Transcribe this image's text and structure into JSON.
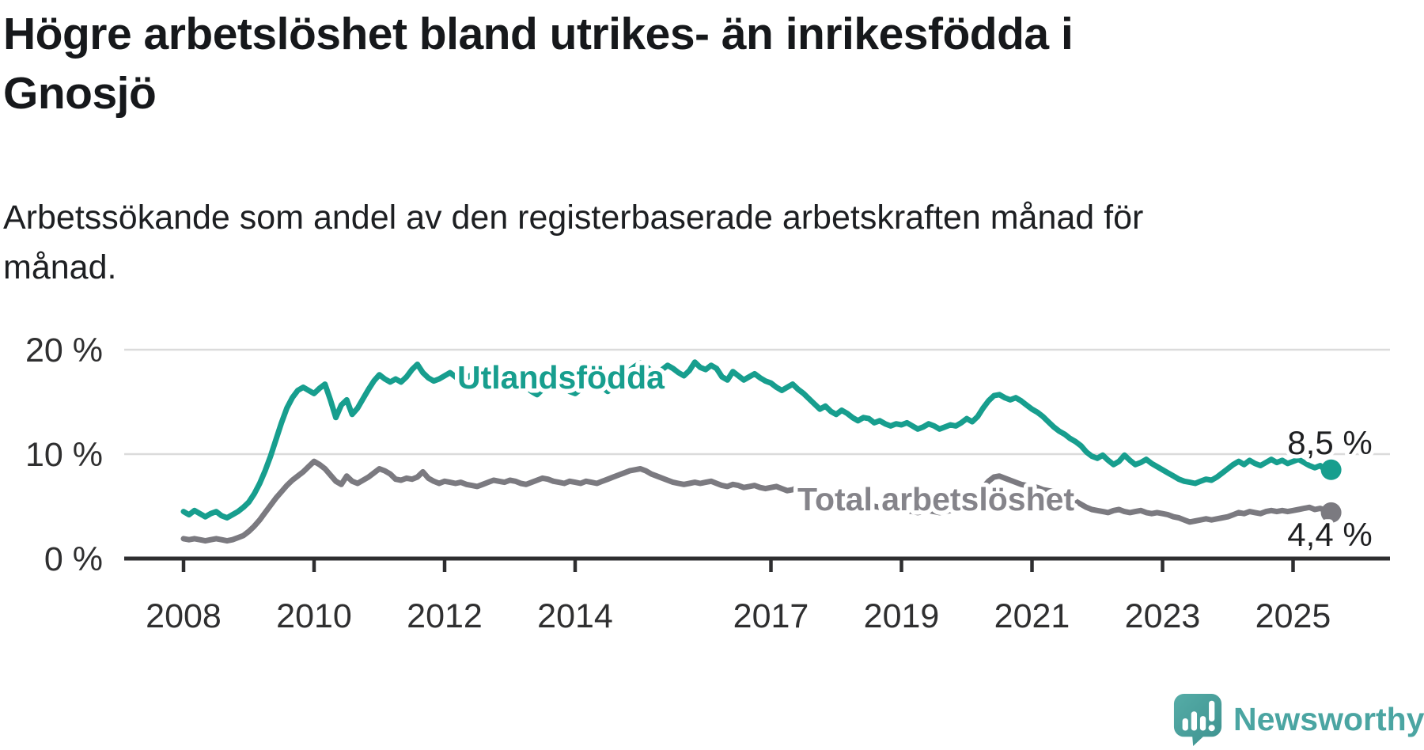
{
  "title": "Högre arbetslöshet bland utrikes- än inrikesfödda i Gnosjö",
  "subtitle": "Arbetssökande som andel av den registerbaserade arbetskraften månad för månad.",
  "brand": {
    "name": "Newsworthy"
  },
  "colors": {
    "series_foreign": "#179e8e",
    "series_total": "#7b7a80",
    "axis": "#2e2e30",
    "grid": "#dbdbdb",
    "tick_text": "#2f2f30",
    "value_label_text": "#1f2022",
    "brand_teal": "#4ba5a2"
  },
  "chart_data": {
    "type": "line",
    "title": "Högre arbetslöshet bland utrikes- än inrikesfödda i Gnosjö",
    "subtitle": "Arbetssökande som andel av den registerbaserade arbetskraften månad för månad.",
    "unit": "%",
    "x_start": "2008-01",
    "x_end": "2025-08",
    "x_interval": "monthly",
    "x_tick_years": [
      2008,
      2010,
      2012,
      2014,
      2017,
      2019,
      2021,
      2023,
      2025
    ],
    "x_tick_labels": [
      "2008",
      "2010",
      "2012",
      "2014",
      "2017",
      "2019",
      "2021",
      "2023",
      "2025"
    ],
    "y_ticks": [
      {
        "value": 0,
        "label": "0 %"
      },
      {
        "value": 10,
        "label": "10 %"
      },
      {
        "value": 20,
        "label": "20 %"
      }
    ],
    "ylim": [
      0,
      21.5
    ],
    "grid": "horizontal-only",
    "legend": "inline-labels",
    "series": [
      {
        "name": "Utlandsfödda",
        "color": "#179e8e",
        "end_label": "8,5 %",
        "end_value": 8.5,
        "values": [
          4.5,
          4.2,
          4.6,
          4.3,
          4.0,
          4.3,
          4.5,
          4.1,
          3.9,
          4.2,
          4.5,
          4.9,
          5.4,
          6.2,
          7.2,
          8.4,
          9.8,
          11.4,
          13.0,
          14.4,
          15.4,
          16.1,
          16.4,
          16.1,
          15.8,
          16.3,
          16.7,
          15.2,
          13.5,
          14.7,
          15.2,
          13.8,
          14.4,
          15.3,
          16.2,
          17.0,
          17.6,
          17.2,
          16.9,
          17.2,
          16.9,
          17.4,
          18.1,
          18.6,
          17.8,
          17.3,
          17.0,
          17.2,
          17.5,
          17.8,
          17.4,
          17.0,
          17.3,
          17.6,
          17.2,
          16.8,
          17.1,
          16.7,
          16.3,
          16.6,
          17.0,
          17.4,
          17.0,
          16.4,
          16.0,
          15.7,
          16.2,
          16.8,
          17.2,
          16.9,
          16.4,
          16.0,
          15.8,
          16.2,
          16.7,
          17.1,
          16.8,
          16.4,
          16.0,
          16.5,
          17.0,
          17.5,
          18.0,
          18.4,
          18.7,
          18.4,
          18.0,
          17.7,
          18.1,
          18.5,
          18.2,
          17.8,
          17.5,
          18.0,
          18.8,
          18.3,
          18.1,
          18.5,
          18.2,
          17.4,
          17.1,
          17.9,
          17.5,
          17.1,
          17.4,
          17.7,
          17.3,
          17.0,
          16.8,
          16.4,
          16.1,
          16.4,
          16.7,
          16.2,
          15.8,
          15.3,
          14.8,
          14.3,
          14.6,
          14.1,
          13.8,
          14.2,
          13.9,
          13.5,
          13.2,
          13.5,
          13.4,
          13.0,
          13.2,
          12.9,
          12.7,
          12.9,
          12.8,
          13.0,
          12.7,
          12.4,
          12.6,
          12.9,
          12.7,
          12.4,
          12.6,
          12.8,
          12.7,
          13.0,
          13.4,
          13.1,
          13.6,
          14.4,
          15.1,
          15.6,
          15.7,
          15.4,
          15.2,
          15.4,
          15.1,
          14.7,
          14.3,
          14.0,
          13.6,
          13.1,
          12.6,
          12.2,
          11.9,
          11.5,
          11.2,
          10.8,
          10.2,
          9.8,
          9.6,
          9.9,
          9.4,
          9.0,
          9.3,
          9.9,
          9.4,
          9.0,
          9.2,
          9.5,
          9.1,
          8.8,
          8.5,
          8.2,
          7.9,
          7.6,
          7.4,
          7.3,
          7.2,
          7.4,
          7.6,
          7.5,
          7.8,
          8.2,
          8.6,
          9.0,
          9.3,
          9.0,
          9.4,
          9.1,
          8.9,
          9.2,
          9.5,
          9.2,
          9.4,
          9.1,
          9.3,
          9.5,
          9.2,
          8.9,
          8.7,
          8.9,
          8.4,
          8.5
        ]
      },
      {
        "name": "Total arbetslöshet",
        "color": "#7b7a80",
        "end_label": "4,4 %",
        "end_value": 4.4,
        "values": [
          1.9,
          1.8,
          1.9,
          1.8,
          1.7,
          1.8,
          1.9,
          1.8,
          1.7,
          1.8,
          2.0,
          2.2,
          2.6,
          3.1,
          3.7,
          4.4,
          5.1,
          5.8,
          6.4,
          7.0,
          7.5,
          7.9,
          8.3,
          8.8,
          9.3,
          9.0,
          8.6,
          8.0,
          7.4,
          7.1,
          7.9,
          7.4,
          7.2,
          7.5,
          7.8,
          8.2,
          8.6,
          8.4,
          8.1,
          7.6,
          7.5,
          7.7,
          7.6,
          7.8,
          8.3,
          7.7,
          7.4,
          7.2,
          7.4,
          7.3,
          7.2,
          7.3,
          7.1,
          7.0,
          6.9,
          7.1,
          7.3,
          7.5,
          7.4,
          7.3,
          7.5,
          7.4,
          7.2,
          7.1,
          7.3,
          7.5,
          7.7,
          7.6,
          7.4,
          7.3,
          7.2,
          7.4,
          7.3,
          7.2,
          7.4,
          7.3,
          7.2,
          7.4,
          7.6,
          7.8,
          8.0,
          8.2,
          8.4,
          8.5,
          8.6,
          8.4,
          8.1,
          7.9,
          7.7,
          7.5,
          7.3,
          7.2,
          7.1,
          7.2,
          7.3,
          7.2,
          7.3,
          7.4,
          7.2,
          7.0,
          6.9,
          7.1,
          7.0,
          6.8,
          6.9,
          7.0,
          6.8,
          6.7,
          6.8,
          6.9,
          6.7,
          6.5,
          6.6,
          6.8,
          6.6,
          6.4,
          6.3,
          6.1,
          5.9,
          5.8,
          5.7,
          5.6,
          5.4,
          5.3,
          5.2,
          5.3,
          5.2,
          5.0,
          4.9,
          4.8,
          4.7,
          4.8,
          4.7,
          4.6,
          4.5,
          4.4,
          4.5,
          4.6,
          4.5,
          4.4,
          4.5,
          4.6,
          4.7,
          4.9,
          5.2,
          5.5,
          6.0,
          6.8,
          7.4,
          7.8,
          7.9,
          7.7,
          7.5,
          7.3,
          7.1,
          7.0,
          6.9,
          6.8,
          6.6,
          6.5,
          6.4,
          6.3,
          6.1,
          5.8,
          5.5,
          5.2,
          4.9,
          4.7,
          4.6,
          4.5,
          4.4,
          4.6,
          4.7,
          4.5,
          4.4,
          4.5,
          4.6,
          4.4,
          4.3,
          4.4,
          4.3,
          4.2,
          4.0,
          3.9,
          3.7,
          3.5,
          3.6,
          3.7,
          3.8,
          3.7,
          3.8,
          3.9,
          4.0,
          4.2,
          4.4,
          4.3,
          4.5,
          4.4,
          4.3,
          4.5,
          4.6,
          4.5,
          4.6,
          4.5,
          4.6,
          4.7,
          4.8,
          4.9,
          4.7,
          4.8,
          4.6,
          4.4
        ]
      }
    ]
  }
}
